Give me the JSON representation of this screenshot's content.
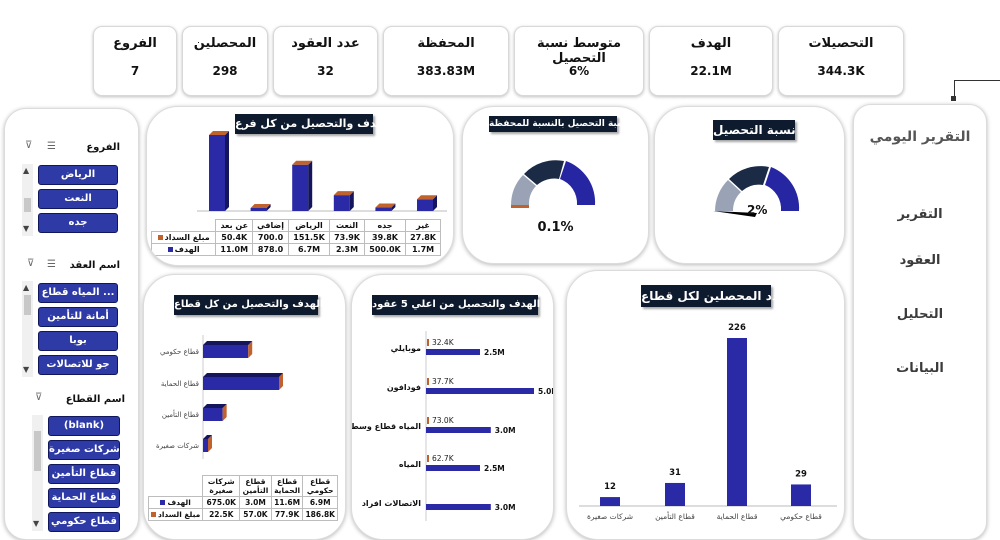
{
  "kpis": [
    {
      "title": "الفروع",
      "value": "7"
    },
    {
      "title": "المحصلين",
      "value": "298"
    },
    {
      "title": "عدد العقود",
      "value": "32"
    },
    {
      "title": "المحفظة",
      "value": "383.83M"
    },
    {
      "title": "متوسط نسبة التحصيل",
      "value": "6%"
    },
    {
      "title": "الهدف",
      "value": "22.1M"
    },
    {
      "title": "التحصيلات",
      "value": "344.3K"
    }
  ],
  "nav": {
    "title": "التقرير اليومي",
    "items": [
      "التقرير",
      "العقود",
      "التحليل",
      "البيانات"
    ]
  },
  "slicers": {
    "branches": {
      "title": "الفروع",
      "items": [
        "الرياض",
        "النعت",
        "جده"
      ]
    },
    "contracts": {
      "title": "اسم العقد",
      "items": [
        "المياه قطاع ...",
        "أمانة للتأمين",
        "بوبا",
        "جو للاتصالات"
      ]
    },
    "sectors": {
      "title": "اسم القطاع",
      "items": [
        "(blank)",
        "شركات صغيرة",
        "قطاع التأمين",
        "قطاع الحماية",
        "قطاع حكومي"
      ]
    }
  },
  "gauges": {
    "collection": {
      "title": "نسبة التحصيل",
      "value": "2%"
    },
    "portfolio": {
      "title": "نسبة التحصيل بالنسبة للمحفظة",
      "value": "0.1%"
    }
  },
  "chart_data": [
    {
      "id": "branches",
      "type": "bar",
      "title": "الهدف والتحصيل من كل فرع",
      "categories": [
        "عن بعد",
        "إضافي",
        "الرياض",
        "النعت",
        "جده",
        "غير"
      ],
      "series": [
        {
          "name": "مبلغ السداد",
          "labels": [
            "50.4K",
            "700.0",
            "151.5K",
            "73.9K",
            "39.8K",
            "27.8K"
          ],
          "values": [
            50400,
            700,
            151500,
            73900,
            39800,
            27800
          ]
        },
        {
          "name": "الهدف",
          "labels": [
            "11.0M",
            "878.0",
            "6.7M",
            "2.3M",
            "500.0K",
            "1.7M"
          ],
          "values": [
            11000000,
            878,
            6700000,
            2300000,
            500000,
            1700000
          ]
        }
      ],
      "colors": {
        "target": "#2a2aa6",
        "paid": "#c0622d"
      }
    },
    {
      "id": "sectors",
      "type": "bar",
      "title": "الهدف والتحصيل من كل قطاع",
      "categories": [
        "قطاع حكومي",
        "قطاع الحماية",
        "قطاع التأمين",
        "شركات صغيرة"
      ],
      "table_categories": [
        "شركات صغيرة",
        "قطاع التأمين",
        "قطاع الحماية",
        "قطاع حكومي"
      ],
      "series": [
        {
          "name": "الهدف",
          "labels": [
            "675.0K",
            "3.0M",
            "11.6M",
            "6.9M"
          ],
          "values": [
            675000,
            3000000,
            11600000,
            6900000
          ]
        },
        {
          "name": "مبلغ السداد",
          "labels": [
            "22.5K",
            "57.0K",
            "77.9K",
            "186.8K"
          ],
          "values": [
            22500,
            57000,
            77900,
            186800
          ]
        }
      ]
    },
    {
      "id": "top5",
      "type": "bar",
      "title": "الهدف والتحصيل من اعلي 5 عقود",
      "categories": [
        "موبايلي",
        "فودافون",
        "المياه قطاع وسطى",
        "المياه",
        "الاتصالات افراد"
      ],
      "series": [
        {
          "name": "مبلغ السداد",
          "labels": [
            "32.4K",
            "37.7K",
            "73.0K",
            "62.7K",
            ""
          ],
          "values": [
            32400,
            37700,
            73000,
            62700,
            0
          ]
        },
        {
          "name": "الهدف",
          "labels": [
            "2.5M",
            "5.0M",
            "3.0M",
            "2.5M",
            "3.0M"
          ],
          "values": [
            2500000,
            5000000,
            3000000,
            2500000,
            3000000
          ]
        }
      ]
    },
    {
      "id": "collectors",
      "type": "bar",
      "title": "عدد المحصلين لكل قطاع",
      "categories": [
        "شركات صغيرة",
        "قطاع التأمين",
        "قطاع الحماية",
        "قطاع حكومي"
      ],
      "values": [
        12,
        31,
        226,
        29
      ]
    }
  ]
}
